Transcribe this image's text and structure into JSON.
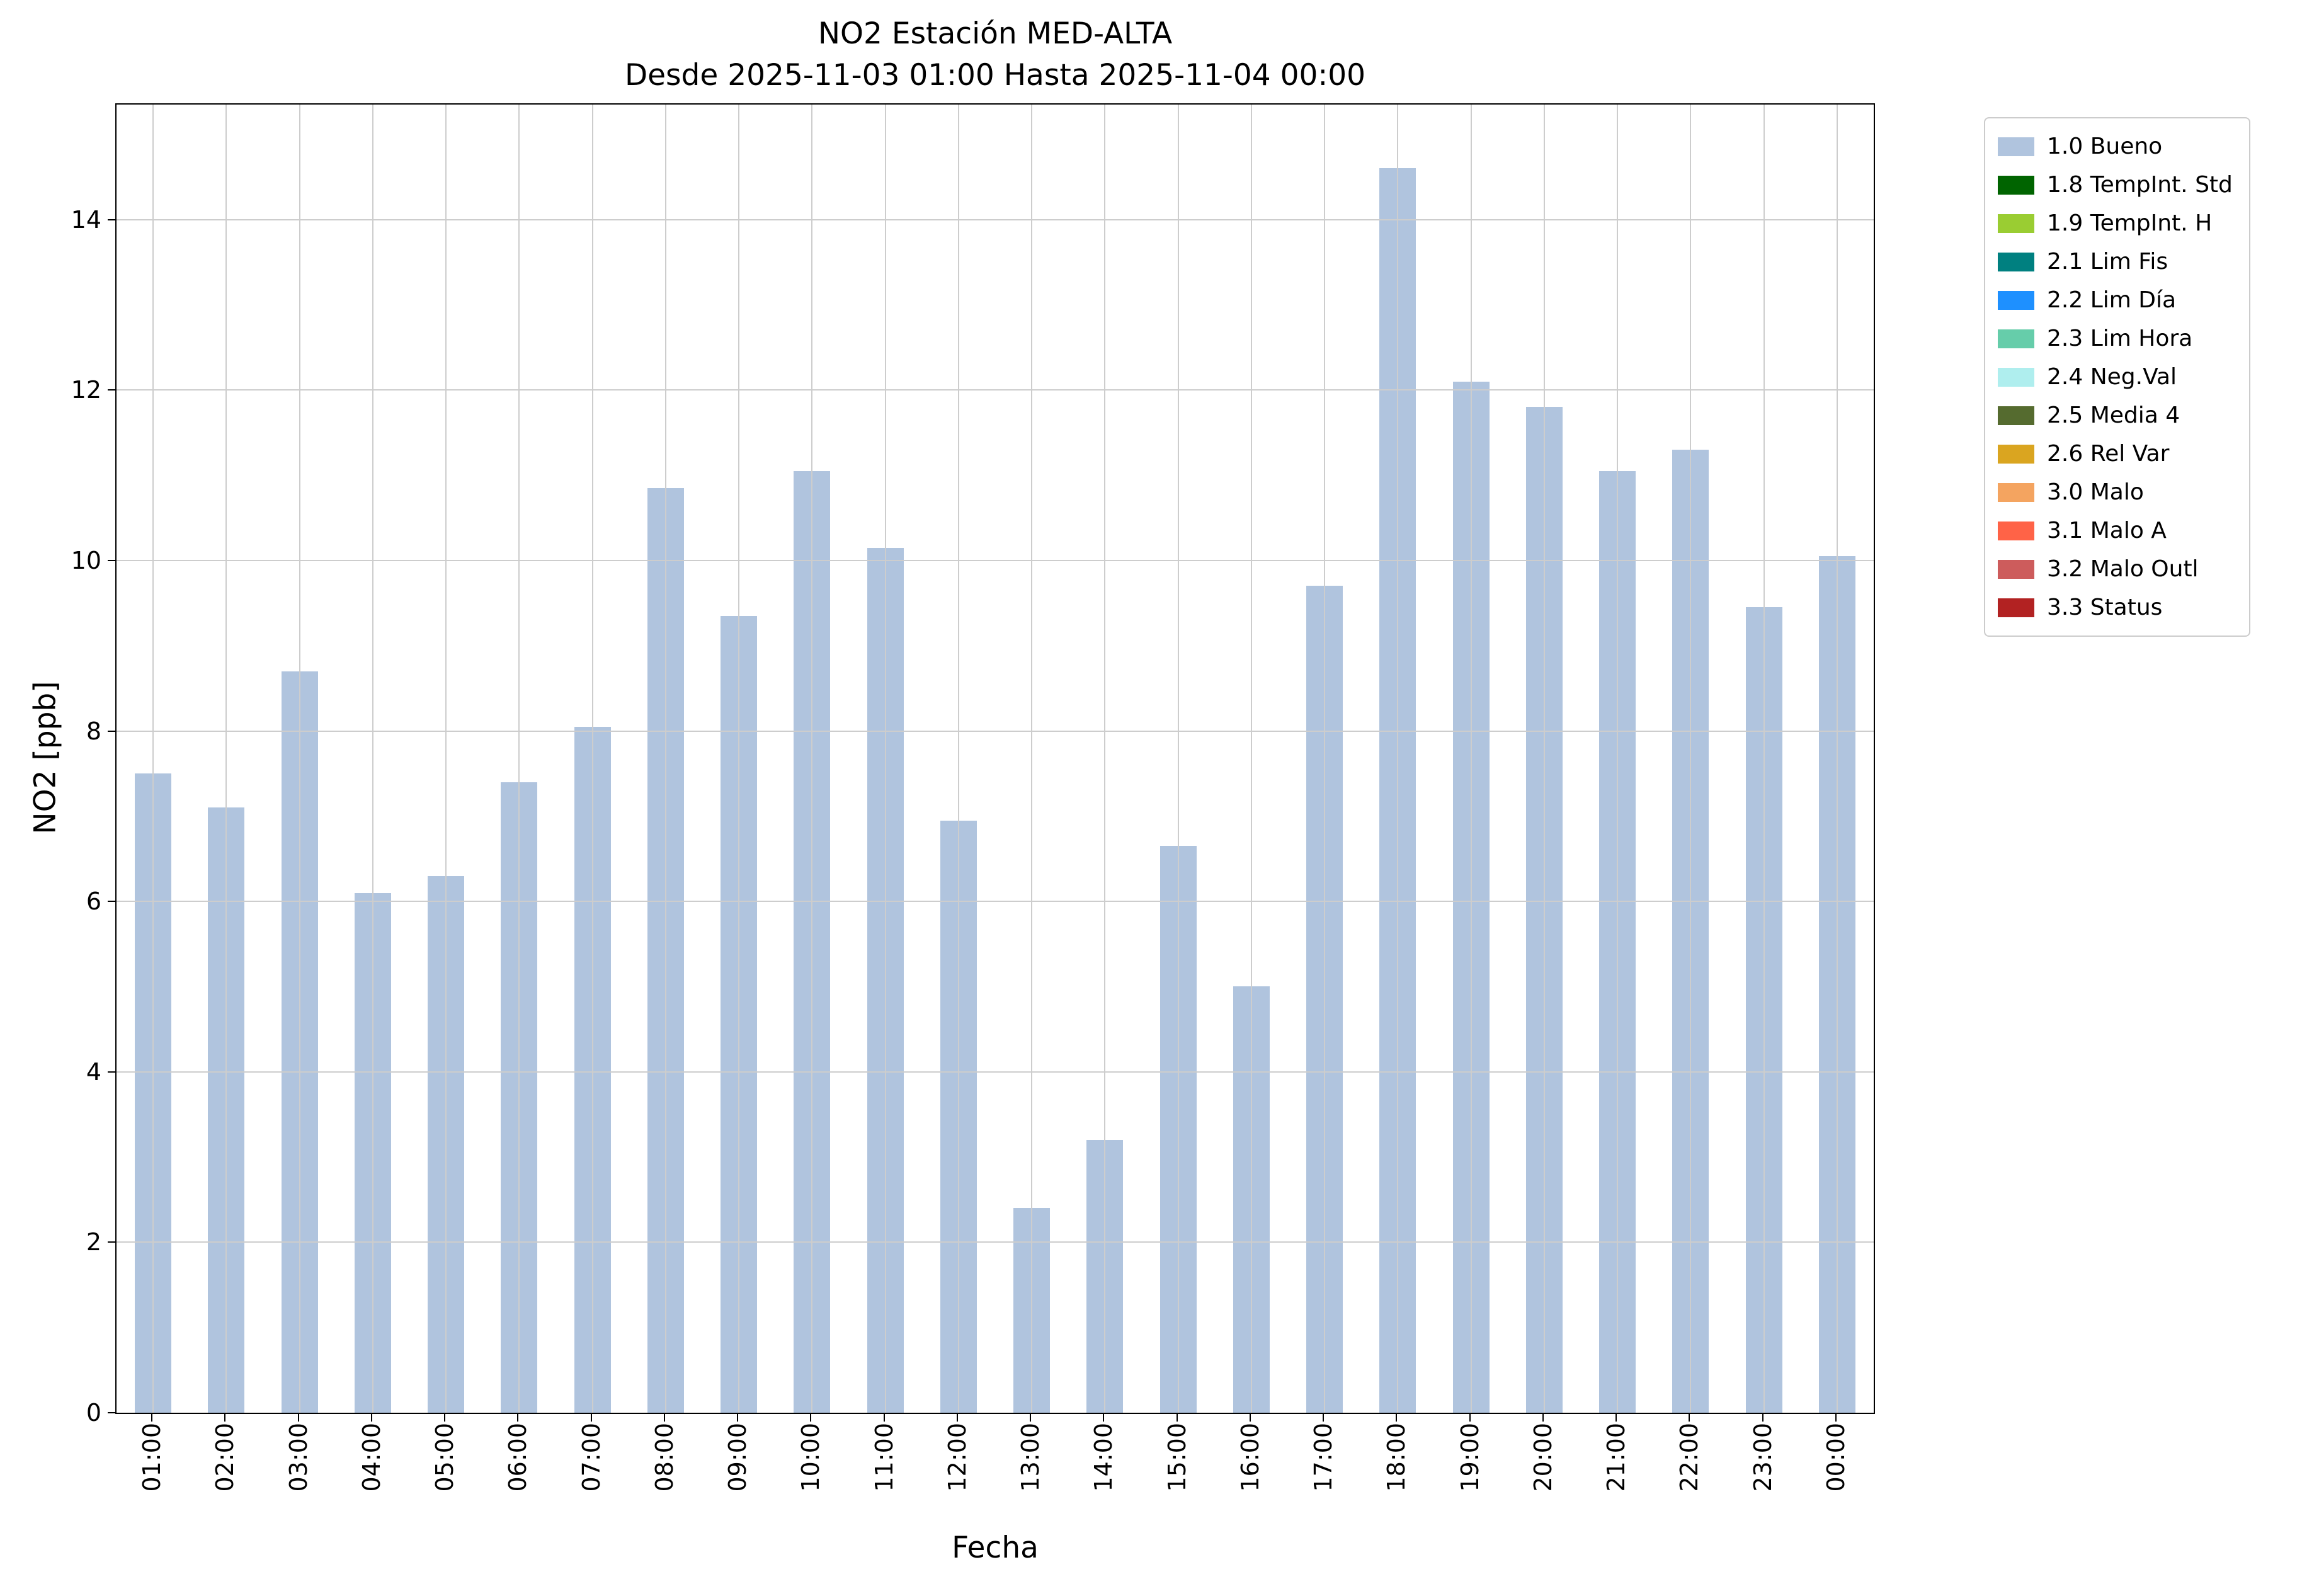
{
  "chart_data": {
    "type": "bar",
    "title": "NO2 Estación MED-ALTA",
    "subtitle": "Desde 2025-11-03 01:00 Hasta 2025-11-04 00:00",
    "xlabel": "Fecha",
    "ylabel": "NO2 [ppb]",
    "categories": [
      "01:00",
      "02:00",
      "03:00",
      "04:00",
      "05:00",
      "06:00",
      "07:00",
      "08:00",
      "09:00",
      "10:00",
      "11:00",
      "12:00",
      "13:00",
      "14:00",
      "15:00",
      "16:00",
      "17:00",
      "18:00",
      "19:00",
      "20:00",
      "21:00",
      "22:00",
      "23:00",
      "00:00"
    ],
    "values": [
      7.5,
      7.1,
      8.7,
      6.1,
      6.3,
      7.4,
      8.05,
      10.85,
      9.35,
      11.05,
      10.15,
      6.95,
      2.4,
      3.2,
      6.65,
      5.0,
      9.7,
      14.6,
      12.1,
      11.8,
      11.05,
      11.3,
      9.45,
      10.05
    ],
    "ylim": [
      0,
      15.35
    ],
    "yticks": [
      0,
      2,
      4,
      6,
      8,
      10,
      12,
      14
    ],
    "grid": true,
    "grid_color": "#cdcdcd",
    "bar_color": "#b0c4de",
    "legend_position": "outside-right-top",
    "legend": [
      {
        "label": "1.0 Bueno",
        "color": "#b0c4de"
      },
      {
        "label": "1.8 TempInt. Std",
        "color": "#006400"
      },
      {
        "label": "1.9 TempInt. H",
        "color": "#9acd32"
      },
      {
        "label": "2.1 Lim Fis",
        "color": "#008080"
      },
      {
        "label": "2.2 Lim Día",
        "color": "#1e90ff"
      },
      {
        "label": "2.3 Lim Hora",
        "color": "#66cdaa"
      },
      {
        "label": "2.4 Neg.Val",
        "color": "#afeeee"
      },
      {
        "label": "2.5 Media 4",
        "color": "#556b2f"
      },
      {
        "label": "2.6 Rel Var",
        "color": "#daa520"
      },
      {
        "label": "3.0 Malo",
        "color": "#f4a460"
      },
      {
        "label": "3.1 Malo A",
        "color": "#ff6347"
      },
      {
        "label": "3.2 Malo Outl",
        "color": "#cd5c5c"
      },
      {
        "label": "3.3 Status",
        "color": "#b22222"
      }
    ]
  }
}
